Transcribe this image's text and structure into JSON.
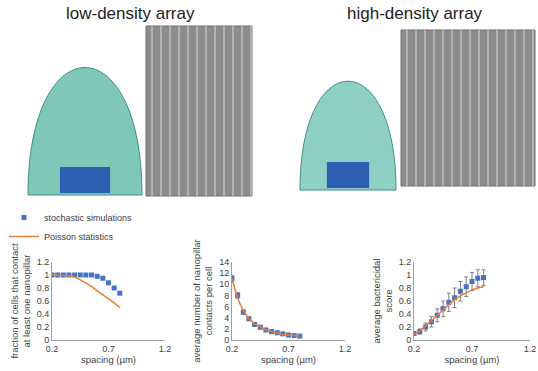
{
  "header": {
    "left": "low-density array",
    "right": "high-density array"
  },
  "chart_data": [
    {
      "type": "scatter",
      "y_label": "fraction of cells that contact\nat least one nanopillar",
      "x_label": "spacing (µm)",
      "legend": "top left",
      "x": [
        0.2,
        0.25,
        0.3,
        0.35,
        0.4,
        0.45,
        0.5,
        0.55,
        0.6,
        0.65,
        0.7,
        0.75,
        0.8
      ],
      "series": [
        {
          "name": "stochastic simulations",
          "type": "scatter",
          "marker": "square",
          "color": "#4472c4",
          "values": [
            1,
            1,
            1,
            1,
            1,
            1,
            1,
            1,
            0.98,
            0.95,
            0.88,
            0.8,
            0.72
          ]
        },
        {
          "name": "Poisson statistics",
          "type": "line",
          "line_style": "solid",
          "color": "#ed7d31",
          "values": [
            1,
            1,
            1,
            0.99,
            0.97,
            0.93,
            0.88,
            0.82,
            0.76,
            0.7,
            0.63,
            0.57,
            0.5
          ]
        }
      ],
      "xlim": [
        0.2,
        1.2
      ],
      "xticks": [
        0.2,
        0.7,
        1.2
      ],
      "ylim": [
        0,
        1.2
      ],
      "yticks": [
        0,
        0.2,
        0.4,
        0.6,
        0.8,
        1,
        1.2
      ],
      "grid": false
    },
    {
      "type": "scatter",
      "y_label": "average number of nanopillar\ncontacts per cell",
      "x_label": "spacing (µm)",
      "x": [
        0.2,
        0.25,
        0.3,
        0.35,
        0.4,
        0.45,
        0.5,
        0.55,
        0.6,
        0.65,
        0.7,
        0.75,
        0.8
      ],
      "series": [
        {
          "name": "stochastic simulations",
          "type": "scatter",
          "marker": "square",
          "color": "#4472c4",
          "values": [
            11,
            8,
            5,
            3.8,
            2.8,
            2.3,
            1.8,
            1.5,
            1.3,
            1.1,
            0.9,
            0.8,
            0.7
          ],
          "errors": [
            0.6,
            0.5,
            0.4,
            0.3,
            0.3,
            0.3,
            0.25,
            0.25,
            0.2,
            0.2,
            0.2,
            0.2,
            0.2
          ]
        },
        {
          "name": "Poisson statistics",
          "type": "line",
          "line_style": "solid",
          "color": "#ed7d31",
          "values": [
            11,
            7.5,
            5.2,
            3.8,
            2.9,
            2.3,
            1.8,
            1.5,
            1.2,
            1,
            0.9,
            0.8,
            0.7
          ]
        }
      ],
      "xlim": [
        0.2,
        1.2
      ],
      "xticks": [
        0.2,
        0.7,
        1.2
      ],
      "ylim": [
        0,
        14
      ],
      "yticks": [
        0,
        2,
        4,
        6,
        8,
        10,
        12,
        14
      ],
      "grid": false
    },
    {
      "type": "scatter",
      "y_label": "average bactericidal\nscore",
      "x_label": "spacing (µm)",
      "x": [
        0.2,
        0.25,
        0.3,
        0.35,
        0.4,
        0.45,
        0.5,
        0.55,
        0.6,
        0.65,
        0.7,
        0.75,
        0.8
      ],
      "series": [
        {
          "name": "stochastic simulations",
          "type": "scatter",
          "marker": "square",
          "color": "#4472c4",
          "values": [
            0.1,
            0.13,
            0.2,
            0.28,
            0.38,
            0.48,
            0.58,
            0.65,
            0.75,
            0.82,
            0.9,
            0.95,
            0.96
          ],
          "errors": [
            0.03,
            0.04,
            0.06,
            0.08,
            0.1,
            0.12,
            0.14,
            0.15,
            0.15,
            0.15,
            0.14,
            0.13,
            0.12
          ]
        },
        {
          "name": "Poisson statistics",
          "type": "line",
          "line_style": "solid",
          "color": "#ed7d31",
          "values": [
            0.08,
            0.14,
            0.22,
            0.3,
            0.39,
            0.47,
            0.55,
            0.62,
            0.68,
            0.73,
            0.77,
            0.8,
            0.82
          ]
        }
      ],
      "xlim": [
        0.2,
        1.2
      ],
      "xticks": [
        0.2,
        0.7,
        1.2
      ],
      "ylim": [
        0,
        1.2
      ],
      "yticks": [
        0,
        0.2,
        0.4,
        0.6,
        0.8,
        1,
        1.2
      ],
      "grid": false
    }
  ]
}
